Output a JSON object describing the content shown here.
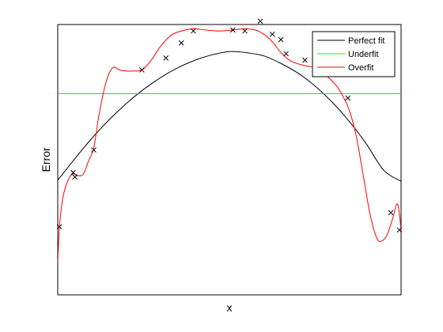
{
  "chart_data": {
    "type": "line",
    "title": "",
    "xlabel": "x",
    "ylabel": "Error",
    "x_ticks_shown": false,
    "y_ticks_shown": false,
    "grid": false,
    "legend_position": "top-right",
    "xlim": [
      0,
      1
    ],
    "ylim": [
      -0.15,
      1.1
    ],
    "scatter": {
      "marker": "x",
      "color": "#000000",
      "x": [
        0.005,
        0.045,
        0.05,
        0.105,
        0.245,
        0.315,
        0.36,
        0.395,
        0.51,
        0.545,
        0.59,
        0.625,
        0.65,
        0.665,
        0.72,
        0.775,
        0.785,
        0.845,
        0.97,
        0.995
      ],
      "y": [
        0.165,
        0.415,
        0.395,
        0.52,
        0.89,
        0.945,
        1.015,
        1.07,
        1.075,
        1.07,
        1.115,
        1.055,
        1.03,
        0.965,
        0.935,
        0.9,
        0.905,
        0.76,
        0.23,
        0.15
      ]
    },
    "series": [
      {
        "name": "Perfect fit",
        "color": "#000000",
        "x": [
          0.0,
          0.05,
          0.1,
          0.15,
          0.2,
          0.25,
          0.3,
          0.35,
          0.4,
          0.45,
          0.5,
          0.55,
          0.6,
          0.65,
          0.7,
          0.75,
          0.8,
          0.85,
          0.9,
          0.95,
          1.0
        ],
        "y": [
          0.38,
          0.48,
          0.575,
          0.66,
          0.735,
          0.8,
          0.855,
          0.9,
          0.935,
          0.96,
          0.975,
          0.97,
          0.955,
          0.92,
          0.875,
          0.815,
          0.74,
          0.65,
          0.545,
          0.425,
          0.375
        ]
      },
      {
        "name": "Underfit",
        "color": "#00ff00",
        "x": [
          0.0,
          1.0
        ],
        "y": [
          0.78,
          0.78
        ]
      },
      {
        "name": "Overfit",
        "color": "#ff0000",
        "x": [
          0.0,
          0.005,
          0.015,
          0.03,
          0.045,
          0.06,
          0.075,
          0.09,
          0.105,
          0.12,
          0.14,
          0.16,
          0.18,
          0.2,
          0.22,
          0.245,
          0.27,
          0.3,
          0.33,
          0.36,
          0.395,
          0.43,
          0.47,
          0.51,
          0.545,
          0.575,
          0.6,
          0.625,
          0.65,
          0.68,
          0.72,
          0.76,
          0.785,
          0.81,
          0.83,
          0.85,
          0.87,
          0.89,
          0.91,
          0.93,
          0.945,
          0.96,
          0.975,
          0.99,
          1.0
        ],
        "y": [
          0.0,
          0.165,
          0.3,
          0.38,
          0.41,
          0.4,
          0.41,
          0.47,
          0.53,
          0.68,
          0.83,
          0.9,
          0.89,
          0.885,
          0.885,
          0.89,
          0.93,
          1.0,
          1.05,
          1.07,
          1.08,
          1.075,
          1.07,
          1.075,
          1.08,
          1.075,
          1.055,
          1.02,
          0.97,
          0.93,
          0.91,
          0.895,
          0.86,
          0.82,
          0.77,
          0.7,
          0.58,
          0.4,
          0.22,
          0.11,
          0.1,
          0.13,
          0.2,
          0.27,
          0.15
        ]
      }
    ]
  }
}
